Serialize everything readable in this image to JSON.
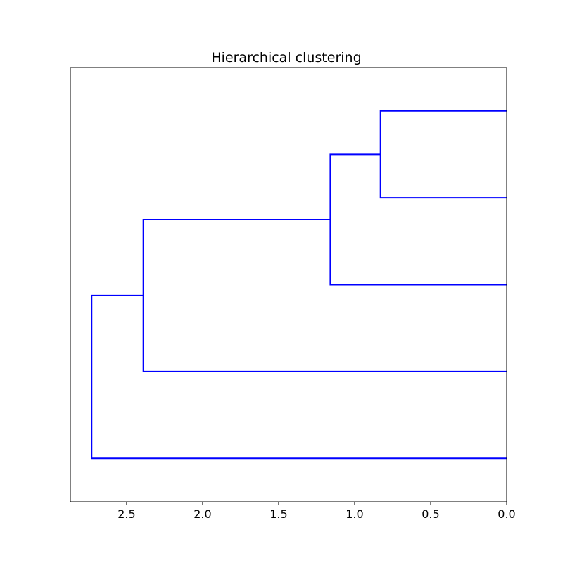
{
  "chart_data": {
    "type": "dendrogram",
    "title": "Hierarchical clustering",
    "orientation": "left",
    "xlabel": "",
    "ylabel": "",
    "xlim": [
      2.87,
      0.0
    ],
    "xticks": [
      2.5,
      2.0,
      1.5,
      1.0,
      0.5,
      0.0
    ],
    "xtick_labels": [
      "2.5",
      "2.0",
      "1.5",
      "1.0",
      "0.5",
      "0.0"
    ],
    "grid": false,
    "line_color": "#0000ff",
    "leaf_count": 5,
    "merges": [
      {
        "children": [
          "leaf-1",
          "leaf-2"
        ],
        "distance": 0.83,
        "id": "m1"
      },
      {
        "children": [
          "m1",
          "leaf-3"
        ],
        "distance": 1.16,
        "id": "m2"
      },
      {
        "children": [
          "m2",
          "leaf-4"
        ],
        "distance": 2.39,
        "id": "m3"
      },
      {
        "children": [
          "m3",
          "leaf-5"
        ],
        "distance": 2.73,
        "id": "m4"
      }
    ]
  }
}
